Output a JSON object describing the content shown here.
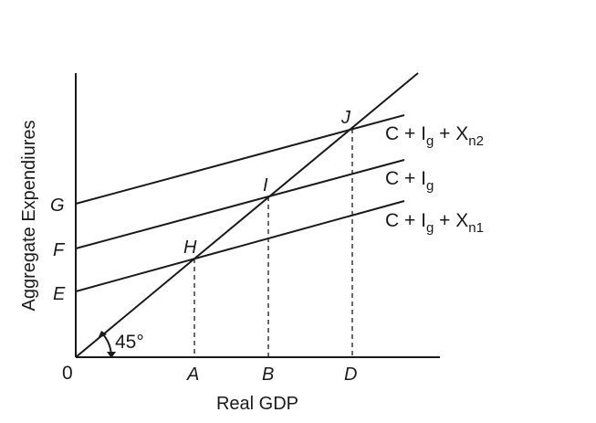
{
  "axes": {
    "x_title": "Real GDP",
    "y_title": "Aggregate Expendiures",
    "origin": "0",
    "x_ticks": [
      "A",
      "B",
      "D"
    ],
    "y_ticks": [
      "E",
      "F",
      "G"
    ]
  },
  "angle_label": "45°",
  "points": {
    "H": "H",
    "I": "I",
    "J": "J"
  },
  "curves": {
    "top": {
      "base": "C + I",
      "sub1": "g",
      "mid": " + X",
      "sub2": "n2"
    },
    "middle": {
      "base": "C + I",
      "sub1": "g"
    },
    "bottom": {
      "base": "C + I",
      "sub1": "g",
      "mid": " + X",
      "sub2": "n1"
    }
  }
}
